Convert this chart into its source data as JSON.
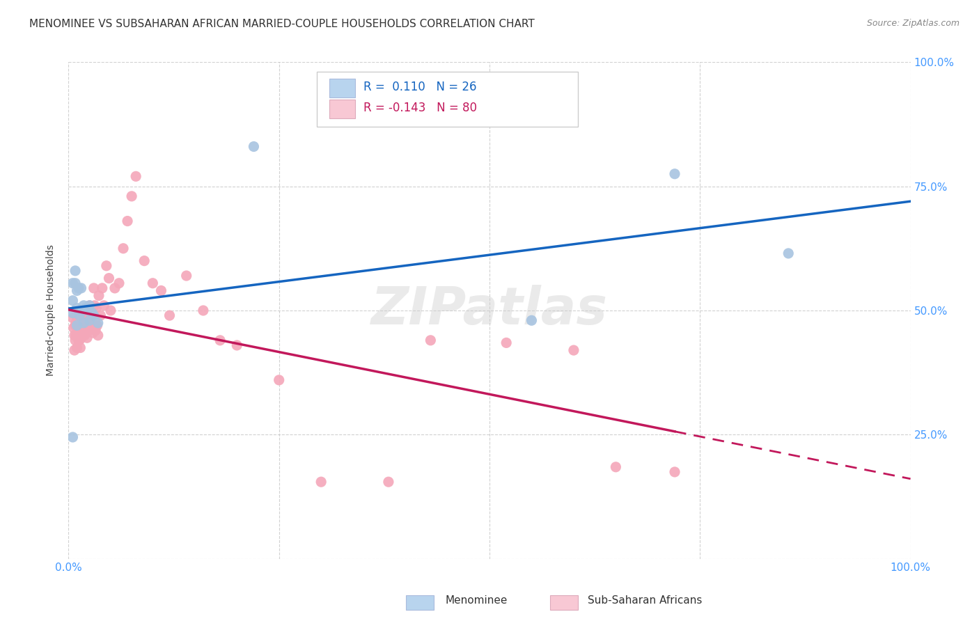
{
  "title": "MENOMINEE VS SUBSAHARAN AFRICAN MARRIED-COUPLE HOUSEHOLDS CORRELATION CHART",
  "source": "Source: ZipAtlas.com",
  "ylabel": "Married-couple Households",
  "xlim": [
    0,
    1.0
  ],
  "ylim": [
    0,
    1.0
  ],
  "menominee_color": "#a8c4e0",
  "menominee_line_color": "#1565c0",
  "subsaharan_color": "#f4a7b9",
  "subsaharan_line_color": "#c2185b",
  "background_color": "#ffffff",
  "grid_color": "#cccccc",
  "legend_box_color_blue": "#b8d4ee",
  "legend_box_color_pink": "#f8c8d4",
  "menominee_x": [
    0.005,
    0.005,
    0.005,
    0.008,
    0.008,
    0.01,
    0.01,
    0.01,
    0.012,
    0.013,
    0.015,
    0.015,
    0.018,
    0.018,
    0.02,
    0.022,
    0.025,
    0.025,
    0.028,
    0.03,
    0.035,
    0.005,
    0.22,
    0.55,
    0.72,
    0.855
  ],
  "menominee_y": [
    0.555,
    0.52,
    0.495,
    0.58,
    0.555,
    0.54,
    0.505,
    0.47,
    0.545,
    0.49,
    0.545,
    0.5,
    0.51,
    0.475,
    0.505,
    0.5,
    0.51,
    0.48,
    0.495,
    0.49,
    0.475,
    0.245,
    0.83,
    0.48,
    0.775,
    0.615
  ],
  "subsaharan_x": [
    0.005,
    0.006,
    0.007,
    0.007,
    0.008,
    0.008,
    0.009,
    0.009,
    0.01,
    0.01,
    0.01,
    0.011,
    0.011,
    0.012,
    0.012,
    0.012,
    0.013,
    0.013,
    0.013,
    0.014,
    0.014,
    0.014,
    0.015,
    0.015,
    0.016,
    0.016,
    0.017,
    0.017,
    0.018,
    0.018,
    0.019,
    0.019,
    0.02,
    0.02,
    0.021,
    0.022,
    0.022,
    0.023,
    0.024,
    0.025,
    0.025,
    0.026,
    0.027,
    0.028,
    0.029,
    0.03,
    0.031,
    0.032,
    0.033,
    0.034,
    0.035,
    0.036,
    0.038,
    0.04,
    0.042,
    0.045,
    0.048,
    0.05,
    0.055,
    0.06,
    0.065,
    0.07,
    0.075,
    0.08,
    0.09,
    0.1,
    0.11,
    0.12,
    0.14,
    0.16,
    0.18,
    0.2,
    0.25,
    0.3,
    0.38,
    0.43,
    0.52,
    0.6,
    0.65,
    0.72
  ],
  "subsaharan_y": [
    0.485,
    0.465,
    0.45,
    0.42,
    0.47,
    0.44,
    0.475,
    0.45,
    0.48,
    0.455,
    0.425,
    0.475,
    0.45,
    0.49,
    0.465,
    0.44,
    0.49,
    0.465,
    0.44,
    0.485,
    0.455,
    0.425,
    0.48,
    0.445,
    0.475,
    0.45,
    0.48,
    0.455,
    0.475,
    0.45,
    0.475,
    0.45,
    0.48,
    0.455,
    0.47,
    0.475,
    0.445,
    0.465,
    0.46,
    0.51,
    0.48,
    0.49,
    0.465,
    0.49,
    0.455,
    0.545,
    0.51,
    0.46,
    0.505,
    0.47,
    0.45,
    0.53,
    0.49,
    0.545,
    0.51,
    0.59,
    0.565,
    0.5,
    0.545,
    0.555,
    0.625,
    0.68,
    0.73,
    0.77,
    0.6,
    0.555,
    0.54,
    0.49,
    0.57,
    0.5,
    0.44,
    0.43,
    0.36,
    0.155,
    0.155,
    0.44,
    0.435,
    0.42,
    0.185,
    0.175
  ],
  "watermark": "ZIPatlas"
}
